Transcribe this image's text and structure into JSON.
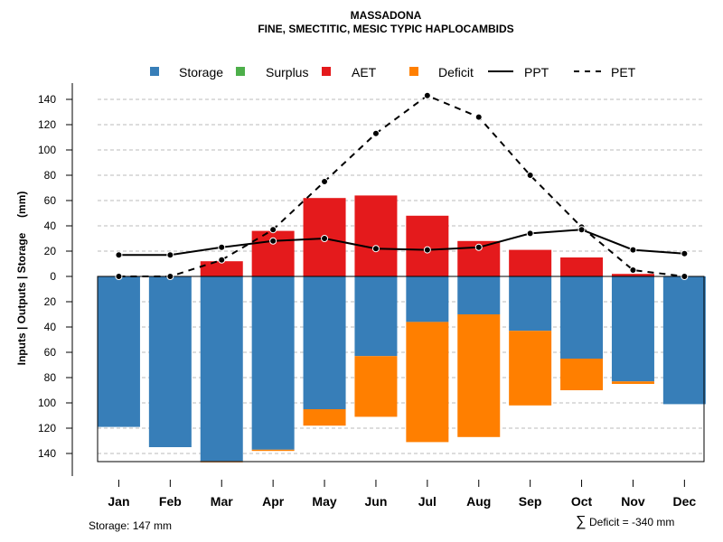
{
  "chart_data": {
    "type": "bar",
    "title": "MASSADONA",
    "subtitle": "FINE, SMECTITIC, MESIC TYPIC HAPLOCAMBIDS",
    "ylabel": "Inputs | Outputs | Storage     (mm)",
    "ylim": [
      -147,
      147
    ],
    "yticks": [
      140,
      120,
      100,
      80,
      60,
      40,
      20,
      0,
      20,
      40,
      60,
      80,
      100,
      120,
      140
    ],
    "categories": [
      "Jan",
      "Feb",
      "Mar",
      "Apr",
      "May",
      "Jun",
      "Jul",
      "Aug",
      "Sep",
      "Oct",
      "Nov",
      "Dec"
    ],
    "legend": [
      "Storage",
      "Surplus",
      "AET",
      "Deficit",
      "PPT",
      "PET"
    ],
    "colors": {
      "storage": "#377eb8",
      "surplus": "#4daf4a",
      "aet": "#e41a1c",
      "deficit": "#ff7f00",
      "line": "#000000",
      "grid": "#bbbbbb"
    },
    "series": [
      {
        "name": "AET",
        "values": [
          0,
          0,
          12,
          36,
          62,
          64,
          48,
          28,
          21,
          15,
          2,
          0
        ]
      },
      {
        "name": "Surplus",
        "values": [
          0,
          0,
          0,
          0,
          0,
          0,
          0,
          0,
          0,
          0,
          0,
          0
        ]
      },
      {
        "name": "Storage",
        "values": [
          119,
          135,
          146,
          137,
          105,
          63,
          36,
          30,
          43,
          65,
          83,
          101
        ]
      },
      {
        "name": "Deficit",
        "values": [
          0,
          0,
          1,
          1,
          13,
          48,
          95,
          97,
          59,
          25,
          2,
          0
        ]
      },
      {
        "name": "PPT",
        "values": [
          17,
          17,
          23,
          28,
          30,
          22,
          21,
          23,
          34,
          37,
          21,
          18
        ]
      },
      {
        "name": "PET",
        "values": [
          0,
          0,
          13,
          37,
          75,
          113,
          143,
          126,
          80,
          39,
          5,
          0
        ]
      }
    ],
    "footer_left": "Storage: 147 mm",
    "footer_right": "Deficit = -340 mm",
    "footer_symbol": "∑"
  }
}
